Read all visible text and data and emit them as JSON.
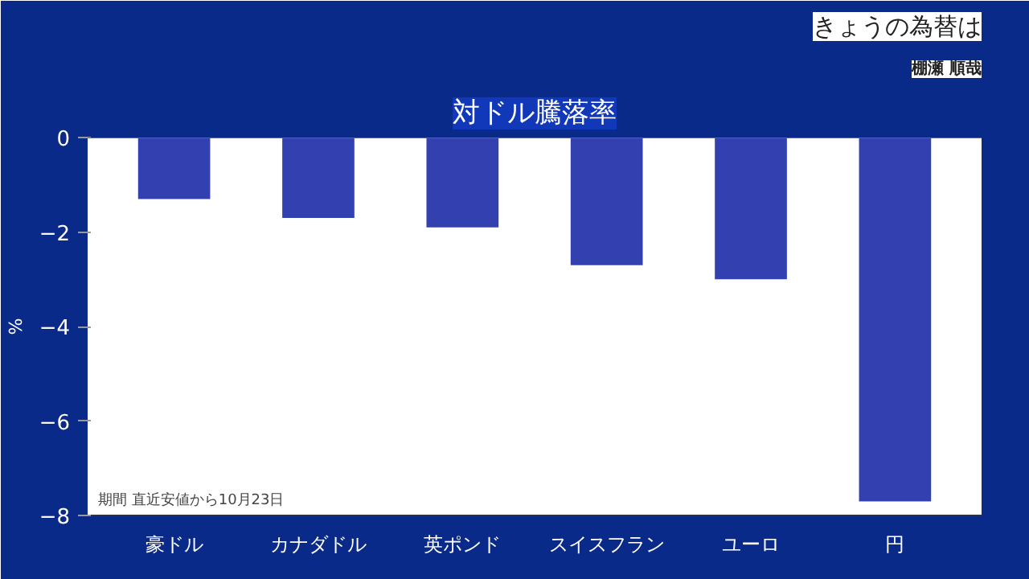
{
  "chart_data": {
    "type": "bar",
    "title": "対ドル騰落率",
    "subtitle": "きょうの為替は",
    "ylabel": "%",
    "categories": [
      "豪ドル",
      "カナダドル",
      "英ポンド",
      "スイスフラン",
      "ユーロ",
      "円"
    ],
    "values": [
      -1.3,
      -1.7,
      -1.9,
      -2.7,
      -3.0,
      -7.7
    ],
    "color": "#3340b0",
    "ylim": [
      -8,
      0
    ],
    "yticks": [
      0,
      -2,
      -4,
      -6,
      -8
    ],
    "grid": false,
    "annotations": [
      "棚瀬 順哉",
      "期間 直近安値から10月23日"
    ]
  }
}
